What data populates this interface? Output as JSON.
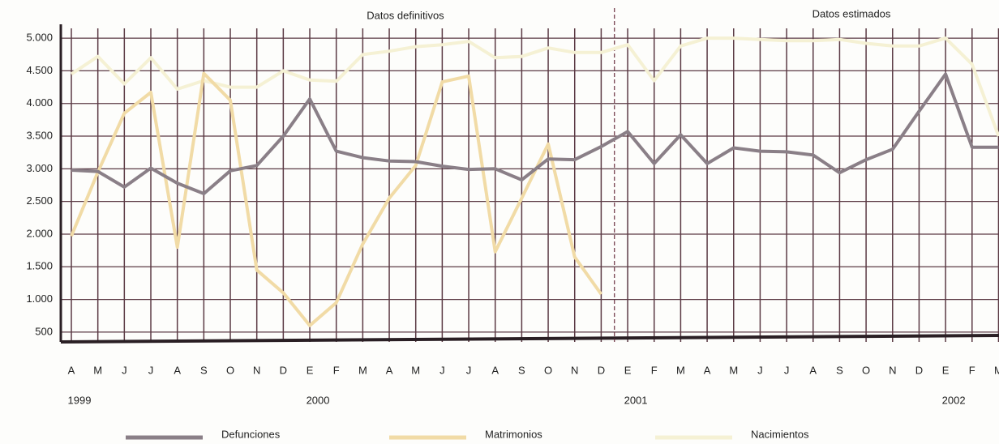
{
  "chart_data": {
    "type": "line",
    "categories": [
      "A",
      "M",
      "J",
      "J",
      "A",
      "S",
      "O",
      "N",
      "D",
      "E",
      "F",
      "M",
      "A",
      "M",
      "J",
      "J",
      "A",
      "S",
      "O",
      "N",
      "D",
      "E",
      "F",
      "M",
      "A",
      "M",
      "J",
      "J",
      "A",
      "S",
      "O",
      "N",
      "D",
      "E",
      "F",
      "M"
    ],
    "years": [
      {
        "label": "1999",
        "start": 0
      },
      {
        "label": "2000",
        "start": 9
      },
      {
        "label": "2001",
        "start": 21
      },
      {
        "label": "2002",
        "start": 33
      }
    ],
    "annotations": [
      {
        "text": "Datos definitivos"
      },
      {
        "text": "Datos estimados",
        "from": 21
      }
    ],
    "series": [
      {
        "name": "Defunciones",
        "color": "#8a7f87",
        "values": [
          2980,
          2960,
          2720,
          3010,
          2780,
          2620,
          2970,
          3050,
          3500,
          4070,
          3270,
          3170,
          3120,
          3110,
          3040,
          2990,
          3000,
          2830,
          3150,
          3140,
          3340,
          3570,
          3080,
          3520,
          3080,
          3320,
          3270,
          3260,
          3210,
          2940,
          3140,
          3300,
          3880,
          4450,
          3330,
          3330
        ]
      },
      {
        "name": "Matrimonios",
        "color": "#f1dba6",
        "values": [
          1970,
          2950,
          3850,
          4170,
          1800,
          4460,
          4050,
          1450,
          1100,
          600,
          950,
          1850,
          2550,
          3050,
          4330,
          4420,
          1730,
          2550,
          3380,
          1650,
          1080,
          null,
          null,
          null,
          null,
          null,
          null,
          null,
          null,
          null,
          null,
          null,
          null,
          null,
          null,
          null
        ]
      },
      {
        "name": "Nacimientos",
        "color": "#f5f1d4",
        "values": [
          4450,
          4720,
          4300,
          4700,
          4220,
          4350,
          4250,
          4250,
          4500,
          4360,
          4340,
          4750,
          4800,
          4870,
          4900,
          4950,
          4700,
          4720,
          4850,
          4780,
          4780,
          4900,
          4350,
          4880,
          5000,
          5000,
          4980,
          4960,
          4960,
          4980,
          4920,
          4880,
          4880,
          5000,
          4600,
          3500
        ]
      }
    ],
    "ylim": [
      350,
      5150
    ],
    "yticks": [
      500,
      {
        "value": 1000,
        "label": "1.000"
      },
      {
        "value": 1500,
        "label": "1.500"
      },
      {
        "value": 2000,
        "label": "2.000"
      },
      {
        "value": 2500,
        "label": "2.500"
      },
      {
        "value": 3000,
        "label": "3.000"
      },
      {
        "value": 3500,
        "label": "3.500"
      },
      {
        "value": 4000,
        "label": "4.000"
      },
      {
        "value": 4500,
        "label": "4.500"
      },
      {
        "value": 5000,
        "label": "5.000"
      }
    ],
    "grid": true
  }
}
